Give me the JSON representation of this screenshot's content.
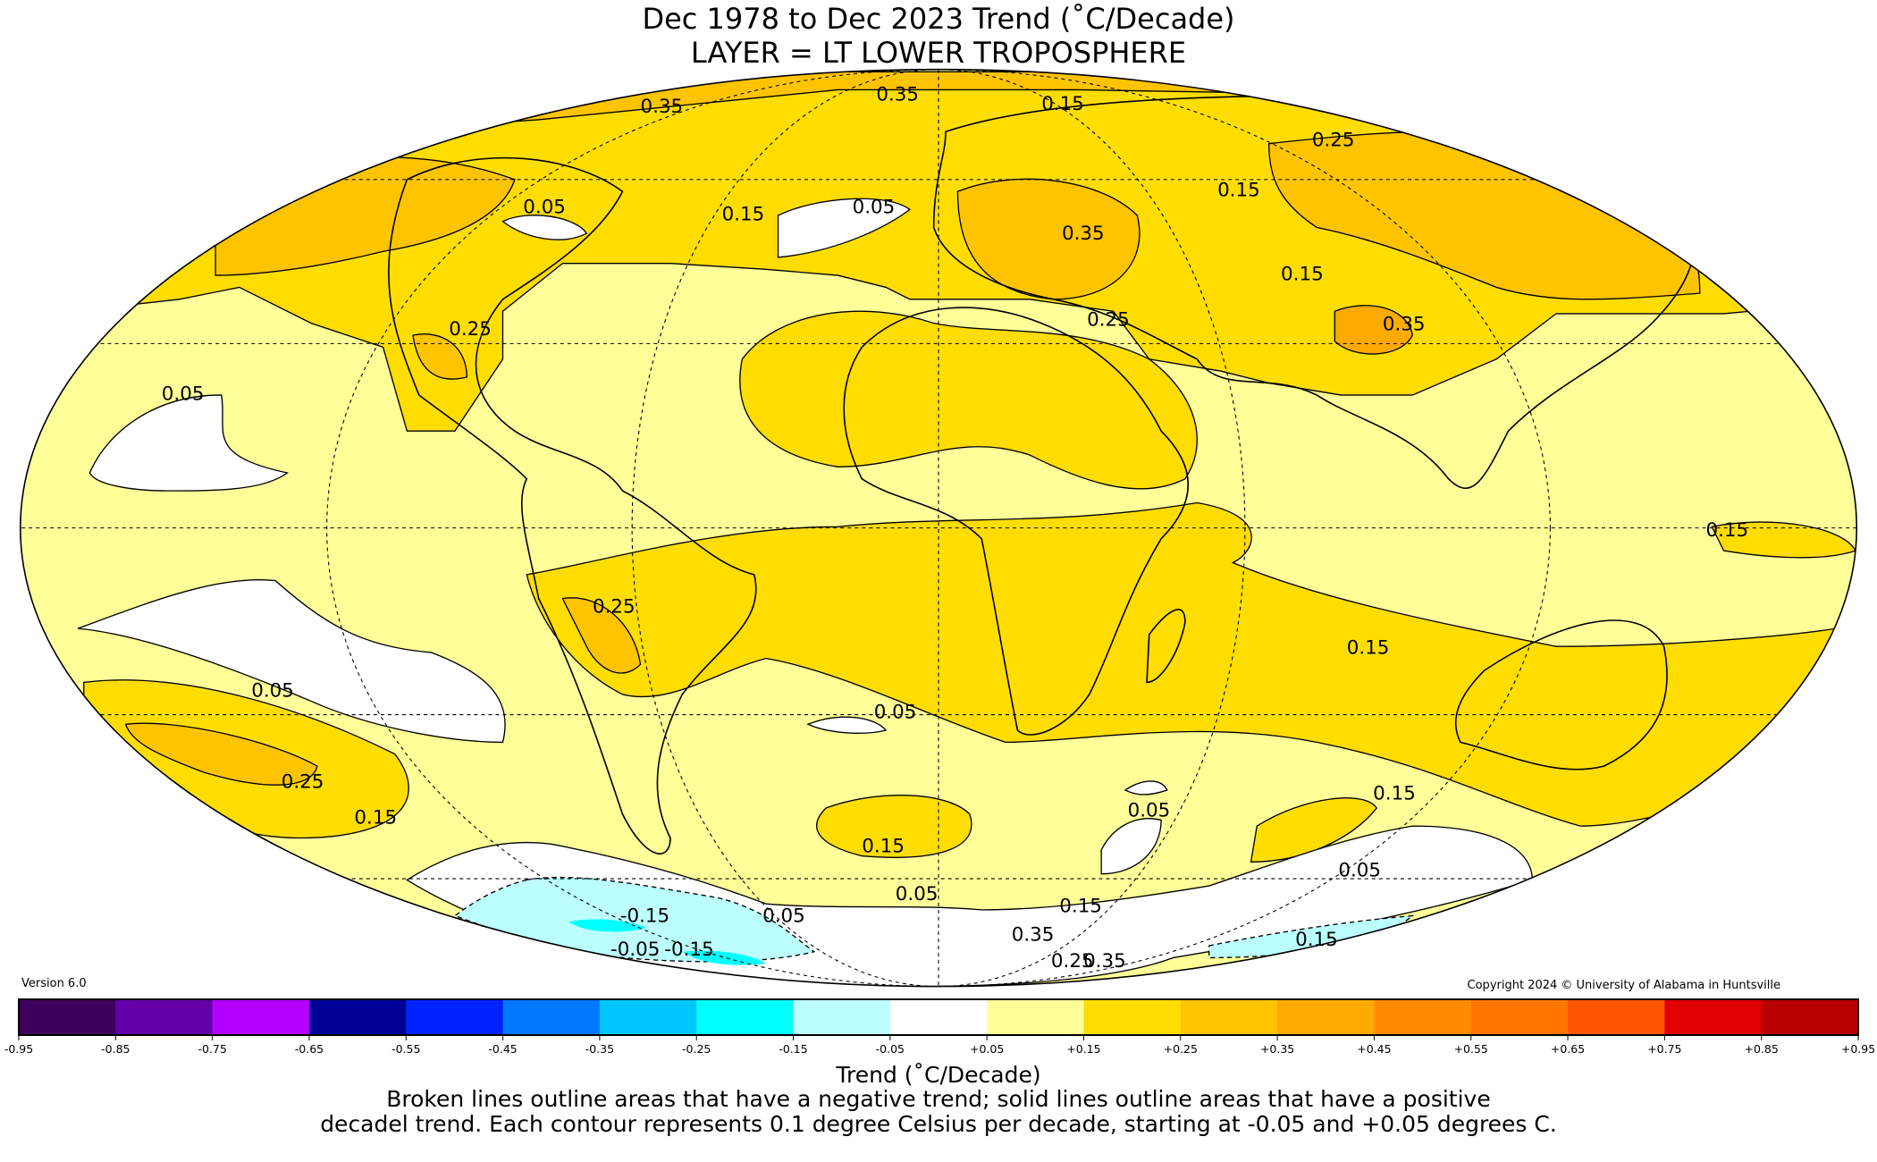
{
  "chart_data": {
    "type": "heatmap",
    "projection": "Mollweide",
    "title": "Dec 1978 to Dec 2023 Trend (˚C/Decade)",
    "subtitle": "LAYER = LT LOWER TROPOSPHERE",
    "version": "Version 6.0",
    "copyright": "Copyright 2024 © University of Alabama in Huntsville",
    "colorbar": {
      "label": "Trend (˚C/Decade)",
      "ticks": [
        "-0.95",
        "-0.85",
        "-0.75",
        "-0.65",
        "-0.55",
        "-0.45",
        "-0.35",
        "-0.25",
        "-0.15",
        "-0.05",
        "+0.05",
        "+0.15",
        "+0.25",
        "+0.35",
        "+0.45",
        "+0.55",
        "+0.65",
        "+0.75",
        "+0.85",
        "+0.95"
      ],
      "colors": [
        "#3d005c",
        "#6400aa",
        "#b400ff",
        "#000096",
        "#0022ff",
        "#0078ff",
        "#00c8ff",
        "#00ffff",
        "#bbffff",
        "#ffffff",
        "#ffff99",
        "#ffdd00",
        "#ffc400",
        "#ffaa00",
        "#ff8c00",
        "#ff7700",
        "#ff5500",
        "#e00000",
        "#b80000"
      ],
      "range": [
        -0.95,
        0.95
      ],
      "step": 0.1
    },
    "contour_labels": [
      "0.35",
      "0.35",
      "0.15",
      "0.25",
      "0.05",
      "0.05",
      "0.15",
      "0.15",
      "0.15",
      "0.35",
      "0.25",
      "0.35",
      "0.25",
      "0.05",
      "0.25",
      "0.05",
      "0.05",
      "0.25",
      "0.15",
      "0.15",
      "0.05",
      "0.15",
      "0.05",
      "0.05",
      "-0.15",
      "0.05",
      "-0.05",
      "0.15",
      "0.35",
      "0.15",
      "0.25",
      "0.35",
      "-0.15",
      "0.15",
      "0.15"
    ],
    "footnote": [
      "Broken lines outline areas that have a negative trend; solid lines outline areas that have a positive",
      "decadel trend. Each contour represents 0.1 degree Celsius per decade, starting at -0.05 and +0.05 degrees C."
    ]
  }
}
